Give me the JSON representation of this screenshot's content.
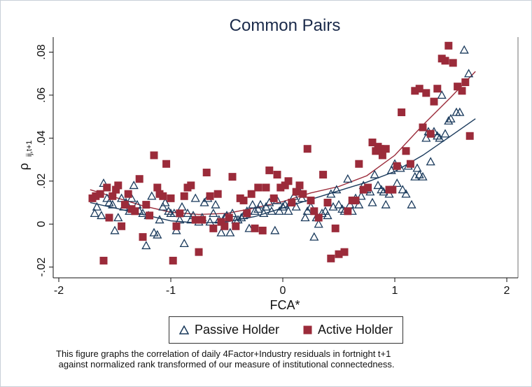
{
  "chart_data": {
    "type": "scatter",
    "title": "Common Pairs",
    "xlabel": "FCA*",
    "ylabel": "ρ ij,t+1",
    "ylabel_main": "ρ",
    "ylabel_sub": "ij,t+1",
    "xlim": [
      -2.05,
      2.1
    ],
    "ylim": [
      -0.025,
      0.087
    ],
    "xticks": [
      "-2",
      "-1",
      "0",
      "1",
      "2"
    ],
    "xtick_values": [
      -2,
      -1,
      0,
      1,
      2
    ],
    "yticks": [
      "-.02",
      "0",
      ".02",
      ".04",
      ".06",
      ".08"
    ],
    "ytick_values": [
      -0.02,
      0,
      0.02,
      0.04,
      0.06,
      0.08
    ],
    "grid": false,
    "legend_position": "bottom",
    "series": [
      {
        "name": "Passive Holder",
        "marker": "triangle-hollow",
        "color": "#1a3a5c",
        "points": [
          [
            -1.68,
            0.005
          ],
          [
            -1.66,
            0.008
          ],
          [
            -1.62,
            0.004
          ],
          [
            -1.6,
            0.019
          ],
          [
            -1.57,
            0.012
          ],
          [
            -1.55,
            0.01
          ],
          [
            -1.52,
            0.009
          ],
          [
            -1.5,
            -0.003
          ],
          [
            -1.47,
            0.003
          ],
          [
            -1.44,
            0.012
          ],
          [
            -1.42,
            0.008
          ],
          [
            -1.4,
            0.01
          ],
          [
            -1.37,
            0.006
          ],
          [
            -1.35,
            0.012
          ],
          [
            -1.33,
            0.018
          ],
          [
            -1.3,
            0.009
          ],
          [
            -1.28,
            0.006
          ],
          [
            -1.25,
            0.005
          ],
          [
            -1.22,
            -0.01
          ],
          [
            -1.2,
            0.004
          ],
          [
            -1.17,
            0.013
          ],
          [
            -1.15,
            -0.004
          ],
          [
            -1.12,
            -0.005
          ],
          [
            -1.1,
            0.002
          ],
          [
            -1.07,
            0.008
          ],
          [
            -1.05,
            0.01
          ],
          [
            -1.02,
            0.006
          ],
          [
            -1.0,
            0.005
          ],
          [
            -0.97,
            0.005
          ],
          [
            -0.95,
            -0.003
          ],
          [
            -0.92,
            0.002
          ],
          [
            -0.9,
            0.008
          ],
          [
            -0.88,
            -0.009
          ],
          [
            -0.85,
            0.005
          ],
          [
            -0.82,
            0.002
          ],
          [
            -0.8,
            0.004
          ],
          [
            -0.78,
            0.012
          ],
          [
            -0.75,
            0.001
          ],
          [
            -0.72,
            0.003
          ],
          [
            -0.7,
            0.01
          ],
          [
            -0.67,
            0.012
          ],
          [
            -0.65,
            0.001
          ],
          [
            -0.62,
            0.005
          ],
          [
            -0.6,
            0.009
          ],
          [
            -0.57,
            0.002
          ],
          [
            -0.55,
            -0.004
          ],
          [
            -0.52,
            0.003
          ],
          [
            -0.5,
            0.004
          ],
          [
            -0.47,
            -0.004
          ],
          [
            -0.45,
            0.005
          ],
          [
            -0.42,
            0.002
          ],
          [
            -0.4,
            0.002
          ],
          [
            -0.37,
            0.003
          ],
          [
            -0.35,
            0.004
          ],
          [
            -0.32,
            0.006
          ],
          [
            -0.3,
            -0.002
          ],
          [
            -0.27,
            0.009
          ],
          [
            -0.25,
            0.006
          ],
          [
            -0.22,
            0.007
          ],
          [
            -0.2,
            0.009
          ],
          [
            -0.17,
            0.005
          ],
          [
            -0.15,
            0.008
          ],
          [
            -0.12,
            0.01
          ],
          [
            -0.1,
            0.006
          ],
          [
            -0.07,
            -0.003
          ],
          [
            -0.05,
            0.011
          ],
          [
            -0.03,
            0.006
          ],
          [
            0.0,
            0.008
          ],
          [
            0.02,
            0.009
          ],
          [
            0.05,
            0.006
          ],
          [
            0.07,
            0.01
          ],
          [
            0.1,
            0.013
          ],
          [
            0.12,
            0.008
          ],
          [
            0.15,
            0.015
          ],
          [
            0.17,
            0.012
          ],
          [
            0.2,
            0.003
          ],
          [
            0.22,
            0.006
          ],
          [
            0.25,
            0.008
          ],
          [
            0.28,
            -0.006
          ],
          [
            0.3,
            0.003
          ],
          [
            0.32,
            0.0
          ],
          [
            0.35,
            0.005
          ],
          [
            0.38,
            0.006
          ],
          [
            0.4,
            0.004
          ],
          [
            0.43,
            0.014
          ],
          [
            0.45,
            0.008
          ],
          [
            0.48,
            0.016
          ],
          [
            0.5,
            0.009
          ],
          [
            0.53,
            0.007
          ],
          [
            0.55,
            0.006
          ],
          [
            0.58,
            0.021
          ],
          [
            0.6,
            0.009
          ],
          [
            0.62,
            0.006
          ],
          [
            0.65,
            0.012
          ],
          [
            0.68,
            0.009
          ],
          [
            0.7,
            0.013
          ],
          [
            0.72,
            0.018
          ],
          [
            0.75,
            0.016
          ],
          [
            0.78,
            0.015
          ],
          [
            0.8,
            0.01
          ],
          [
            0.82,
            0.023
          ],
          [
            0.85,
            0.018
          ],
          [
            0.88,
            0.016
          ],
          [
            0.9,
            0.015
          ],
          [
            0.92,
            0.009
          ],
          [
            0.95,
            0.014
          ],
          [
            0.97,
            0.025
          ],
          [
            1.0,
            0.028
          ],
          [
            1.02,
            0.019
          ],
          [
            1.05,
            0.026
          ],
          [
            1.07,
            0.016
          ],
          [
            1.1,
            0.014
          ],
          [
            1.12,
            0.027
          ],
          [
            1.15,
            0.009
          ],
          [
            1.18,
            0.022
          ],
          [
            1.2,
            0.026
          ],
          [
            1.22,
            0.023
          ],
          [
            1.25,
            0.022
          ],
          [
            1.28,
            0.04
          ],
          [
            1.3,
            0.043
          ],
          [
            1.32,
            0.029
          ],
          [
            1.35,
            0.043
          ],
          [
            1.38,
            0.041
          ],
          [
            1.4,
            0.04
          ],
          [
            1.42,
            0.06
          ],
          [
            1.45,
            0.042
          ],
          [
            1.48,
            0.048
          ],
          [
            1.5,
            0.049
          ],
          [
            1.55,
            0.052
          ],
          [
            1.58,
            0.052
          ],
          [
            1.62,
            0.081
          ],
          [
            1.66,
            0.07
          ]
        ],
        "fit": [
          [
            -1.72,
            0.01
          ],
          [
            -1.5,
            0.0075
          ],
          [
            -1.25,
            0.0045
          ],
          [
            -1.0,
            0.0015
          ],
          [
            -0.75,
            0.0005
          ],
          [
            -0.5,
            0.001
          ],
          [
            -0.25,
            0.0035
          ],
          [
            0.0,
            0.0075
          ],
          [
            0.25,
            0.0115
          ],
          [
            0.5,
            0.0155
          ],
          [
            0.75,
            0.0195
          ],
          [
            1.0,
            0.0245
          ],
          [
            1.25,
            0.032
          ],
          [
            1.5,
            0.041
          ],
          [
            1.72,
            0.049
          ]
        ]
      },
      {
        "name": "Active Holder",
        "marker": "square-filled",
        "color": "#9b2b3a",
        "points": [
          [
            -1.7,
            0.012
          ],
          [
            -1.67,
            0.013
          ],
          [
            -1.63,
            0.014
          ],
          [
            -1.6,
            -0.017
          ],
          [
            -1.57,
            0.017
          ],
          [
            -1.55,
            0.003
          ],
          [
            -1.52,
            0.013
          ],
          [
            -1.49,
            0.016
          ],
          [
            -1.47,
            0.018
          ],
          [
            -1.44,
            -0.001
          ],
          [
            -1.41,
            0.009
          ],
          [
            -1.38,
            0.014
          ],
          [
            -1.35,
            0.007
          ],
          [
            -1.32,
            0.006
          ],
          [
            -1.28,
            0.021
          ],
          [
            -1.25,
            -0.006
          ],
          [
            -1.22,
            0.009
          ],
          [
            -1.19,
            0.004
          ],
          [
            -1.15,
            0.032
          ],
          [
            -1.12,
            0.017
          ],
          [
            -1.1,
            0.014
          ],
          [
            -1.07,
            0.013
          ],
          [
            -1.04,
            0.028
          ],
          [
            -1.0,
            0.012
          ],
          [
            -0.98,
            -0.017
          ],
          [
            -0.95,
            -0.001
          ],
          [
            -0.92,
            0.005
          ],
          [
            -0.88,
            0.013
          ],
          [
            -0.85,
            0.017
          ],
          [
            -0.82,
            0.018
          ],
          [
            -0.78,
            0.002
          ],
          [
            -0.75,
            -0.013
          ],
          [
            -0.72,
            0.002
          ],
          [
            -0.68,
            0.024
          ],
          [
            -0.65,
            0.013
          ],
          [
            -0.62,
            -0.002
          ],
          [
            -0.58,
            0.014
          ],
          [
            -0.55,
            0.001
          ],
          [
            -0.52,
            -0.001
          ],
          [
            -0.48,
            0.003
          ],
          [
            -0.45,
            0.022
          ],
          [
            -0.42,
            -0.001
          ],
          [
            -0.38,
            0.012
          ],
          [
            -0.35,
            0.011
          ],
          [
            -0.32,
            0.005
          ],
          [
            -0.28,
            0.014
          ],
          [
            -0.25,
            -0.002
          ],
          [
            -0.22,
            0.017
          ],
          [
            -0.18,
            -0.003
          ],
          [
            -0.15,
            0.017
          ],
          [
            -0.12,
            0.025
          ],
          [
            -0.08,
            0.012
          ],
          [
            -0.05,
            0.023
          ],
          [
            -0.02,
            0.017
          ],
          [
            0.02,
            0.018
          ],
          [
            0.05,
            0.02
          ],
          [
            0.08,
            0.01
          ],
          [
            0.12,
            0.015
          ],
          [
            0.15,
            0.018
          ],
          [
            0.18,
            0.014
          ],
          [
            0.22,
            0.035
          ],
          [
            0.25,
            0.011
          ],
          [
            0.28,
            0.006
          ],
          [
            0.32,
            0.003
          ],
          [
            0.36,
            0.023
          ],
          [
            0.4,
            0.01
          ],
          [
            0.43,
            -0.016
          ],
          [
            0.47,
            -0.002
          ],
          [
            0.5,
            -0.014
          ],
          [
            0.55,
            -0.013
          ],
          [
            0.58,
            0.006
          ],
          [
            0.62,
            0.011
          ],
          [
            0.65,
            0.011
          ],
          [
            0.68,
            0.028
          ],
          [
            0.72,
            0.016
          ],
          [
            0.76,
            0.017
          ],
          [
            0.8,
            0.038
          ],
          [
            0.83,
            0.034
          ],
          [
            0.85,
            0.036
          ],
          [
            0.87,
            0.035
          ],
          [
            0.89,
            0.032
          ],
          [
            0.92,
            0.035
          ],
          [
            0.95,
            0.016
          ],
          [
            0.98,
            0.016
          ],
          [
            1.02,
            0.027
          ],
          [
            1.06,
            0.052
          ],
          [
            1.1,
            0.034
          ],
          [
            1.14,
            0.028
          ],
          [
            1.18,
            0.062
          ],
          [
            1.22,
            0.063
          ],
          [
            1.25,
            0.045
          ],
          [
            1.28,
            0.061
          ],
          [
            1.32,
            0.042
          ],
          [
            1.35,
            0.057
          ],
          [
            1.38,
            0.063
          ],
          [
            1.42,
            0.077
          ],
          [
            1.45,
            0.076
          ],
          [
            1.48,
            0.083
          ],
          [
            1.52,
            0.075
          ],
          [
            1.56,
            0.064
          ],
          [
            1.6,
            0.062
          ],
          [
            1.63,
            0.066
          ],
          [
            1.67,
            0.041
          ]
        ],
        "fit": [
          [
            -1.72,
            0.016
          ],
          [
            -1.5,
            0.0125
          ],
          [
            -1.25,
            0.0085
          ],
          [
            -1.0,
            0.0055
          ],
          [
            -0.75,
            0.0045
          ],
          [
            -0.5,
            0.005
          ],
          [
            -0.25,
            0.0075
          ],
          [
            0.0,
            0.0105
          ],
          [
            0.25,
            0.0145
          ],
          [
            0.5,
            0.0175
          ],
          [
            0.75,
            0.0225
          ],
          [
            1.0,
            0.032
          ],
          [
            1.25,
            0.046
          ],
          [
            1.5,
            0.059
          ],
          [
            1.72,
            0.071
          ]
        ]
      }
    ]
  },
  "caption": {
    "line1": "This figure graphs the correlation of daily 4Factor+Industry residuals in fortnight t+1",
    "line2": " against normalized rank transformed of our measure of institutional connectedness."
  }
}
